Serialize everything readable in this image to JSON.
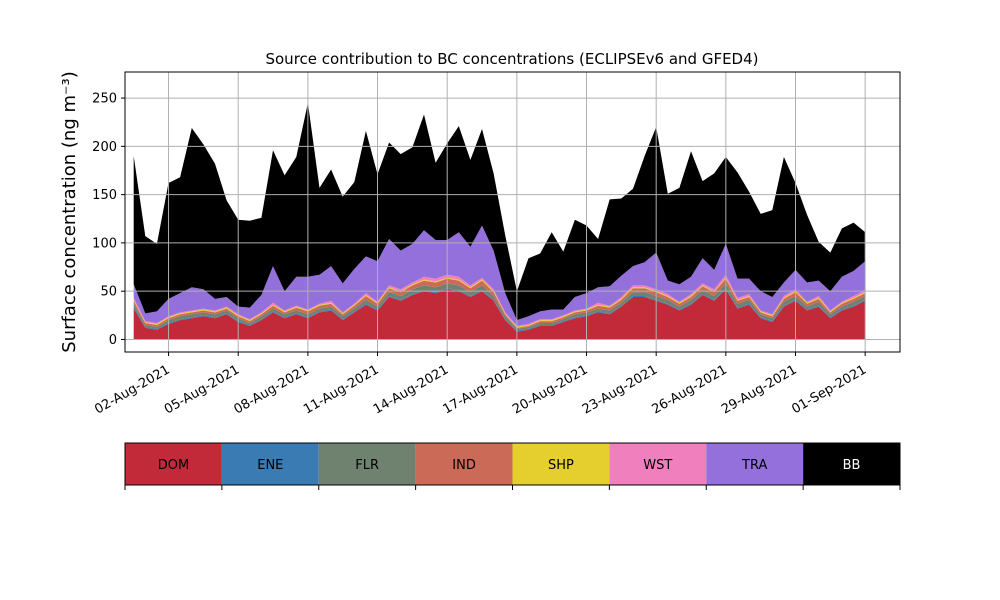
{
  "chart_data": {
    "type": "area",
    "stacked": true,
    "title": "Source contribution to BC concentrations (ECLIPSEv6 and GFED4)",
    "ylabel": "Surface concentration (ng m⁻³)",
    "xlabel": "",
    "ylim": [
      -13,
      277
    ],
    "yticks": [
      0,
      50,
      100,
      150,
      200,
      250
    ],
    "xrange": [
      "2021-07-31T03:00",
      "2021-09-02T12:00"
    ],
    "xticks": [
      "02-Aug-2021",
      "05-Aug-2021",
      "08-Aug-2021",
      "11-Aug-2021",
      "14-Aug-2021",
      "17-Aug-2021",
      "20-Aug-2021",
      "23-Aug-2021",
      "26-Aug-2021",
      "29-Aug-2021",
      "01-Sep-2021"
    ],
    "xtick_dates": [
      "2021-08-02",
      "2021-08-05",
      "2021-08-08",
      "2021-08-11",
      "2021-08-14",
      "2021-08-17",
      "2021-08-20",
      "2021-08-23",
      "2021-08-26",
      "2021-08-29",
      "2021-09-01"
    ],
    "grid": true,
    "legend_position": "bottom",
    "x": [
      "2021-07-31T12:00",
      "2021-08-01T00:00",
      "2021-08-01T12:00",
      "2021-08-02T00:00",
      "2021-08-02T12:00",
      "2021-08-03T00:00",
      "2021-08-03T12:00",
      "2021-08-04T00:00",
      "2021-08-04T12:00",
      "2021-08-05T00:00",
      "2021-08-05T12:00",
      "2021-08-06T00:00",
      "2021-08-06T12:00",
      "2021-08-07T00:00",
      "2021-08-07T12:00",
      "2021-08-08T00:00",
      "2021-08-08T12:00",
      "2021-08-09T00:00",
      "2021-08-09T12:00",
      "2021-08-10T00:00",
      "2021-08-10T12:00",
      "2021-08-11T00:00",
      "2021-08-11T12:00",
      "2021-08-12T00:00",
      "2021-08-12T12:00",
      "2021-08-13T00:00",
      "2021-08-13T12:00",
      "2021-08-14T00:00",
      "2021-08-14T12:00",
      "2021-08-15T00:00",
      "2021-08-15T12:00",
      "2021-08-16T00:00",
      "2021-08-16T12:00",
      "2021-08-17T00:00",
      "2021-08-17T12:00",
      "2021-08-18T00:00",
      "2021-08-18T12:00",
      "2021-08-19T00:00",
      "2021-08-19T12:00",
      "2021-08-20T00:00",
      "2021-08-20T12:00",
      "2021-08-21T00:00",
      "2021-08-21T12:00",
      "2021-08-22T00:00",
      "2021-08-22T12:00",
      "2021-08-23T00:00",
      "2021-08-23T12:00",
      "2021-08-24T00:00",
      "2021-08-24T12:00",
      "2021-08-25T00:00",
      "2021-08-25T12:00",
      "2021-08-26T00:00",
      "2021-08-26T12:00",
      "2021-08-27T00:00",
      "2021-08-27T12:00",
      "2021-08-28T00:00",
      "2021-08-28T12:00",
      "2021-08-29T00:00",
      "2021-08-29T12:00",
      "2021-08-30T00:00",
      "2021-08-30T12:00",
      "2021-08-31T00:00",
      "2021-08-31T12:00",
      "2021-09-01T00:00"
    ],
    "series": [
      {
        "name": "DOM",
        "color": "#c22a3a",
        "values": [
          32,
          12,
          10,
          16,
          20,
          22,
          24,
          22,
          26,
          18,
          14,
          20,
          28,
          22,
          26,
          22,
          28,
          30,
          20,
          28,
          36,
          30,
          44,
          40,
          46,
          50,
          48,
          52,
          50,
          44,
          50,
          40,
          20,
          8,
          10,
          14,
          14,
          18,
          22,
          24,
          28,
          26,
          34,
          44,
          44,
          40,
          36,
          30,
          36,
          46,
          40,
          52,
          32,
          36,
          22,
          18,
          34,
          40,
          30,
          34,
          22,
          30,
          34,
          40
        ]
      },
      {
        "name": "ENE",
        "color": "#3a7bb3",
        "values": [
          2,
          1,
          1,
          1,
          1,
          1,
          1,
          1,
          1,
          1,
          1,
          1,
          1,
          1,
          1,
          1,
          1,
          1,
          1,
          1,
          1,
          1,
          1,
          1,
          1,
          1,
          1,
          1,
          1,
          1,
          1,
          1,
          1,
          1,
          1,
          1,
          1,
          1,
          1,
          1,
          1,
          1,
          1,
          1,
          1,
          1,
          1,
          1,
          1,
          1,
          1,
          1,
          1,
          1,
          1,
          1,
          1,
          1,
          1,
          1,
          1,
          1,
          1,
          1
        ]
      },
      {
        "name": "FLR",
        "color": "#6f8270",
        "values": [
          3,
          2,
          2,
          3,
          3,
          3,
          3,
          3,
          3,
          3,
          2,
          3,
          3,
          3,
          3,
          3,
          3,
          3,
          3,
          3,
          4,
          3,
          4,
          4,
          5,
          5,
          5,
          5,
          5,
          4,
          5,
          4,
          3,
          2,
          2,
          2,
          2,
          2,
          3,
          3,
          3,
          3,
          3,
          4,
          4,
          4,
          4,
          3,
          4,
          4,
          4,
          5,
          4,
          4,
          3,
          3,
          4,
          4,
          3,
          4,
          3,
          3,
          4,
          4
        ]
      },
      {
        "name": "IND",
        "color": "#cc6a58",
        "values": [
          3,
          2,
          2,
          2,
          2,
          2,
          2,
          2,
          2,
          2,
          2,
          2,
          3,
          2,
          3,
          3,
          3,
          3,
          2,
          3,
          4,
          3,
          4,
          4,
          4,
          5,
          5,
          5,
          5,
          4,
          5,
          4,
          2,
          1,
          1,
          2,
          2,
          2,
          2,
          2,
          3,
          3,
          3,
          4,
          4,
          4,
          3,
          3,
          3,
          4,
          4,
          5,
          3,
          3,
          2,
          2,
          3,
          4,
          3,
          3,
          2,
          3,
          3,
          3
        ]
      },
      {
        "name": "SHP",
        "color": "#e5cf2e",
        "values": [
          1,
          1,
          1,
          1,
          1,
          1,
          1,
          1,
          1,
          1,
          1,
          1,
          1,
          1,
          1,
          1,
          1,
          1,
          1,
          1,
          1,
          1,
          1,
          1,
          1,
          1,
          1,
          1,
          1,
          1,
          1,
          1,
          1,
          1,
          1,
          1,
          1,
          1,
          1,
          1,
          1,
          1,
          1,
          1,
          1,
          1,
          1,
          1,
          1,
          1,
          1,
          1,
          1,
          1,
          1,
          1,
          1,
          1,
          1,
          1,
          1,
          1,
          1,
          1
        ]
      },
      {
        "name": "WST",
        "color": "#f07fbd",
        "values": [
          2,
          1,
          1,
          1,
          1,
          1,
          1,
          1,
          1,
          1,
          1,
          1,
          2,
          1,
          1,
          1,
          1,
          2,
          1,
          1,
          2,
          1,
          2,
          2,
          2,
          3,
          3,
          3,
          3,
          2,
          2,
          2,
          1,
          1,
          1,
          1,
          1,
          1,
          1,
          1,
          2,
          1,
          2,
          2,
          2,
          2,
          2,
          1,
          2,
          2,
          2,
          3,
          2,
          2,
          1,
          1,
          2,
          2,
          1,
          2,
          1,
          1,
          2,
          2
        ]
      },
      {
        "name": "TRA",
        "color": "#9370db",
        "values": [
          14,
          8,
          12,
          18,
          20,
          24,
          20,
          12,
          10,
          8,
          12,
          18,
          38,
          20,
          30,
          34,
          30,
          36,
          30,
          36,
          38,
          42,
          48,
          40,
          40,
          48,
          40,
          36,
          46,
          40,
          54,
          40,
          20,
          6,
          8,
          8,
          10,
          6,
          14,
          16,
          16,
          20,
          22,
          20,
          24,
          38,
          14,
          18,
          18,
          26,
          20,
          32,
          20,
          16,
          20,
          18,
          14,
          20,
          20,
          16,
          20,
          26,
          26,
          30
        ]
      },
      {
        "name": "BB",
        "color": "#000000",
        "values": [
          133,
          80,
          70,
          120,
          120,
          165,
          150,
          140,
          100,
          90,
          90,
          80,
          120,
          120,
          124,
          180,
          90,
          100,
          90,
          90,
          130,
          90,
          100,
          100,
          100,
          120,
          80,
          100,
          110,
          90,
          100,
          80,
          60,
          30,
          60,
          60,
          80,
          60,
          80,
          70,
          50,
          90,
          80,
          80,
          110,
          130,
          90,
          100,
          130,
          80,
          100,
          90,
          110,
          90,
          80,
          90,
          130,
          90,
          70,
          40,
          40,
          50,
          50,
          30
        ]
      }
    ]
  }
}
